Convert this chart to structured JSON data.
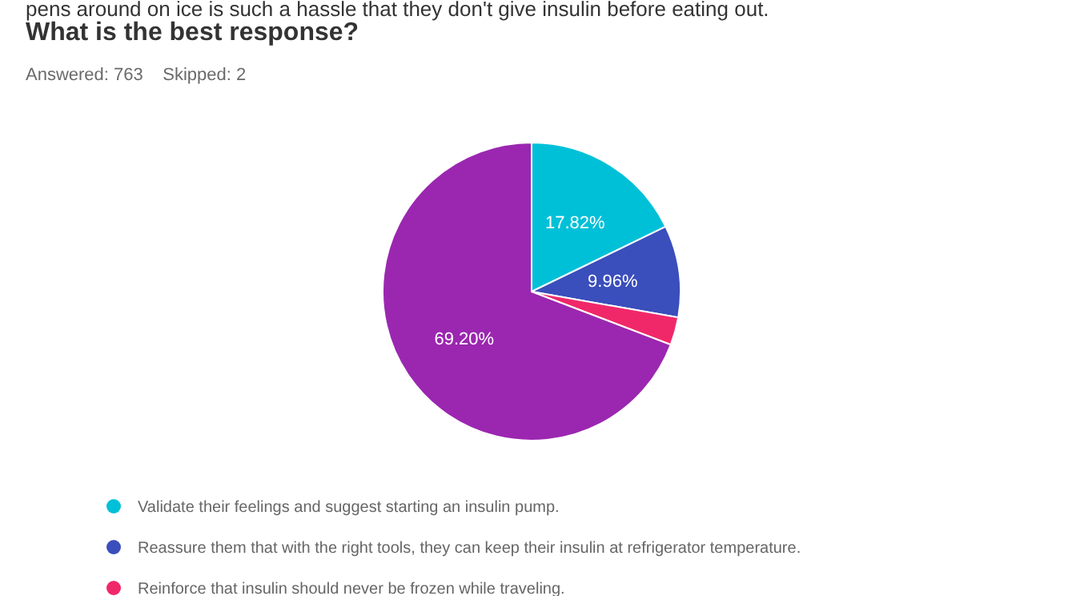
{
  "chart_data": {
    "type": "pie",
    "title": "What is the best response?",
    "subtitle": "Answered: 763    Skipped: 2",
    "annotations": [
      "pens around on ice is such a hassle that they don't give insulin before eating out."
    ],
    "categories": [
      "Validate their feelings and suggest starting an insulin pump.",
      "Reassure them that with the right tools, they can keep their insulin at refrigerator temperature.",
      "Reinforce that insulin should never be frozen while traveling.",
      null
    ],
    "values": [
      17.82,
      9.96,
      3.02,
      69.2
    ],
    "value_labels": [
      "17.82%",
      "9.96%",
      null,
      "69.20%"
    ],
    "colors": [
      "#00c0d8",
      "#3a4ebc",
      "#f0286a",
      "#9b27b0"
    ],
    "legend": "bottom"
  }
}
